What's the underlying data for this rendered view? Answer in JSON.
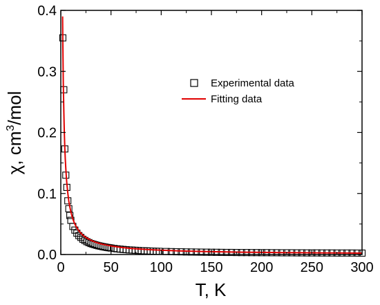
{
  "chart_data": {
    "type": "scatter",
    "title": "",
    "xlabel": "T, K",
    "ylabel": {
      "prefix": "χ, cm",
      "sup": "3",
      "suffix": "/mol"
    },
    "xlim": [
      0,
      300
    ],
    "ylim": [
      0,
      0.4
    ],
    "x_ticks": [
      0,
      50,
      100,
      150,
      200,
      250,
      300
    ],
    "y_ticks": [
      0.0,
      0.1,
      0.2,
      0.3,
      0.4
    ],
    "x_tick_labels": [
      "0",
      "50",
      "100",
      "150",
      "200",
      "250",
      "300"
    ],
    "y_tick_labels": [
      "0.0",
      "0.1",
      "0.2",
      "0.3",
      "0.4"
    ],
    "grid": false,
    "legend_position": "top-right",
    "colors": {
      "experimental": "#000000",
      "fit": "#e00000"
    },
    "series": [
      {
        "name": "Experimental data",
        "marker": "open-square",
        "x": [
          2,
          3,
          4,
          5,
          6,
          7,
          8,
          9,
          10,
          12,
          14,
          16,
          18,
          20,
          22,
          24,
          26,
          28,
          30,
          32,
          34,
          36,
          38,
          40,
          42,
          44,
          46,
          48,
          50,
          53,
          56,
          59,
          62,
          65,
          68,
          71,
          74,
          77,
          80,
          83,
          86,
          89,
          92,
          95,
          98,
          105,
          110,
          115,
          120,
          125,
          130,
          135,
          140,
          145,
          150,
          155,
          160,
          165,
          170,
          175,
          180,
          185,
          190,
          195,
          200,
          205,
          210,
          215,
          220,
          225,
          230,
          235,
          240,
          245,
          250,
          255,
          260,
          265,
          270,
          275,
          280,
          285,
          290,
          295,
          300
        ],
        "y": [
          0.355,
          0.27,
          0.173,
          0.13,
          0.11,
          0.088,
          0.075,
          0.064,
          0.056,
          0.046,
          0.04,
          0.035,
          0.031,
          0.028,
          0.025,
          0.023,
          0.021,
          0.0195,
          0.018,
          0.017,
          0.016,
          0.015,
          0.0142,
          0.0135,
          0.0128,
          0.0122,
          0.0116,
          0.0111,
          0.0106,
          0.0099,
          0.0093,
          0.0088,
          0.0083,
          0.0079,
          0.0075,
          0.0072,
          0.0069,
          0.0066,
          0.0063,
          0.0061,
          0.0059,
          0.0057,
          0.0055,
          0.0053,
          0.0052,
          0.0049,
          0.0047,
          0.0045,
          0.0044,
          0.0042,
          0.0041,
          0.004,
          0.0039,
          0.0038,
          0.0037,
          0.0036,
          0.0035,
          0.0034,
          0.0034,
          0.0033,
          0.0032,
          0.0032,
          0.0031,
          0.0031,
          0.003,
          0.003,
          0.0029,
          0.0029,
          0.0028,
          0.0028,
          0.0028,
          0.0027,
          0.0027,
          0.0026,
          0.0026,
          0.0026,
          0.0025,
          0.0025,
          0.0025,
          0.0024,
          0.0024,
          0.0024,
          0.0024,
          0.0023,
          0.0023
        ]
      },
      {
        "name": "Fitting data",
        "line": "solid",
        "x": [
          1.8,
          2,
          2.5,
          3,
          3.5,
          4,
          4.5,
          5,
          5.5,
          6,
          7,
          8,
          9,
          10,
          11,
          12,
          13,
          14,
          15,
          17,
          19,
          21,
          23,
          25,
          28,
          31,
          35,
          40,
          45,
          50,
          60,
          70,
          80,
          90,
          100,
          120,
          140,
          160,
          180,
          200,
          220,
          240,
          260,
          280,
          300
        ],
        "y": [
          0.39,
          0.351,
          0.281,
          0.234,
          0.2,
          0.175,
          0.156,
          0.14,
          0.127,
          0.117,
          0.1,
          0.0875,
          0.078,
          0.07,
          0.0636,
          0.0583,
          0.0538,
          0.05,
          0.0467,
          0.0412,
          0.0368,
          0.0333,
          0.0304,
          0.028,
          0.025,
          0.0225,
          0.02,
          0.0175,
          0.0156,
          0.014,
          0.0117,
          0.01,
          0.0088,
          0.0078,
          0.007,
          0.0058,
          0.005,
          0.0044,
          0.0039,
          0.0035,
          0.0032,
          0.0029,
          0.0027,
          0.0025,
          0.0023
        ]
      }
    ]
  }
}
